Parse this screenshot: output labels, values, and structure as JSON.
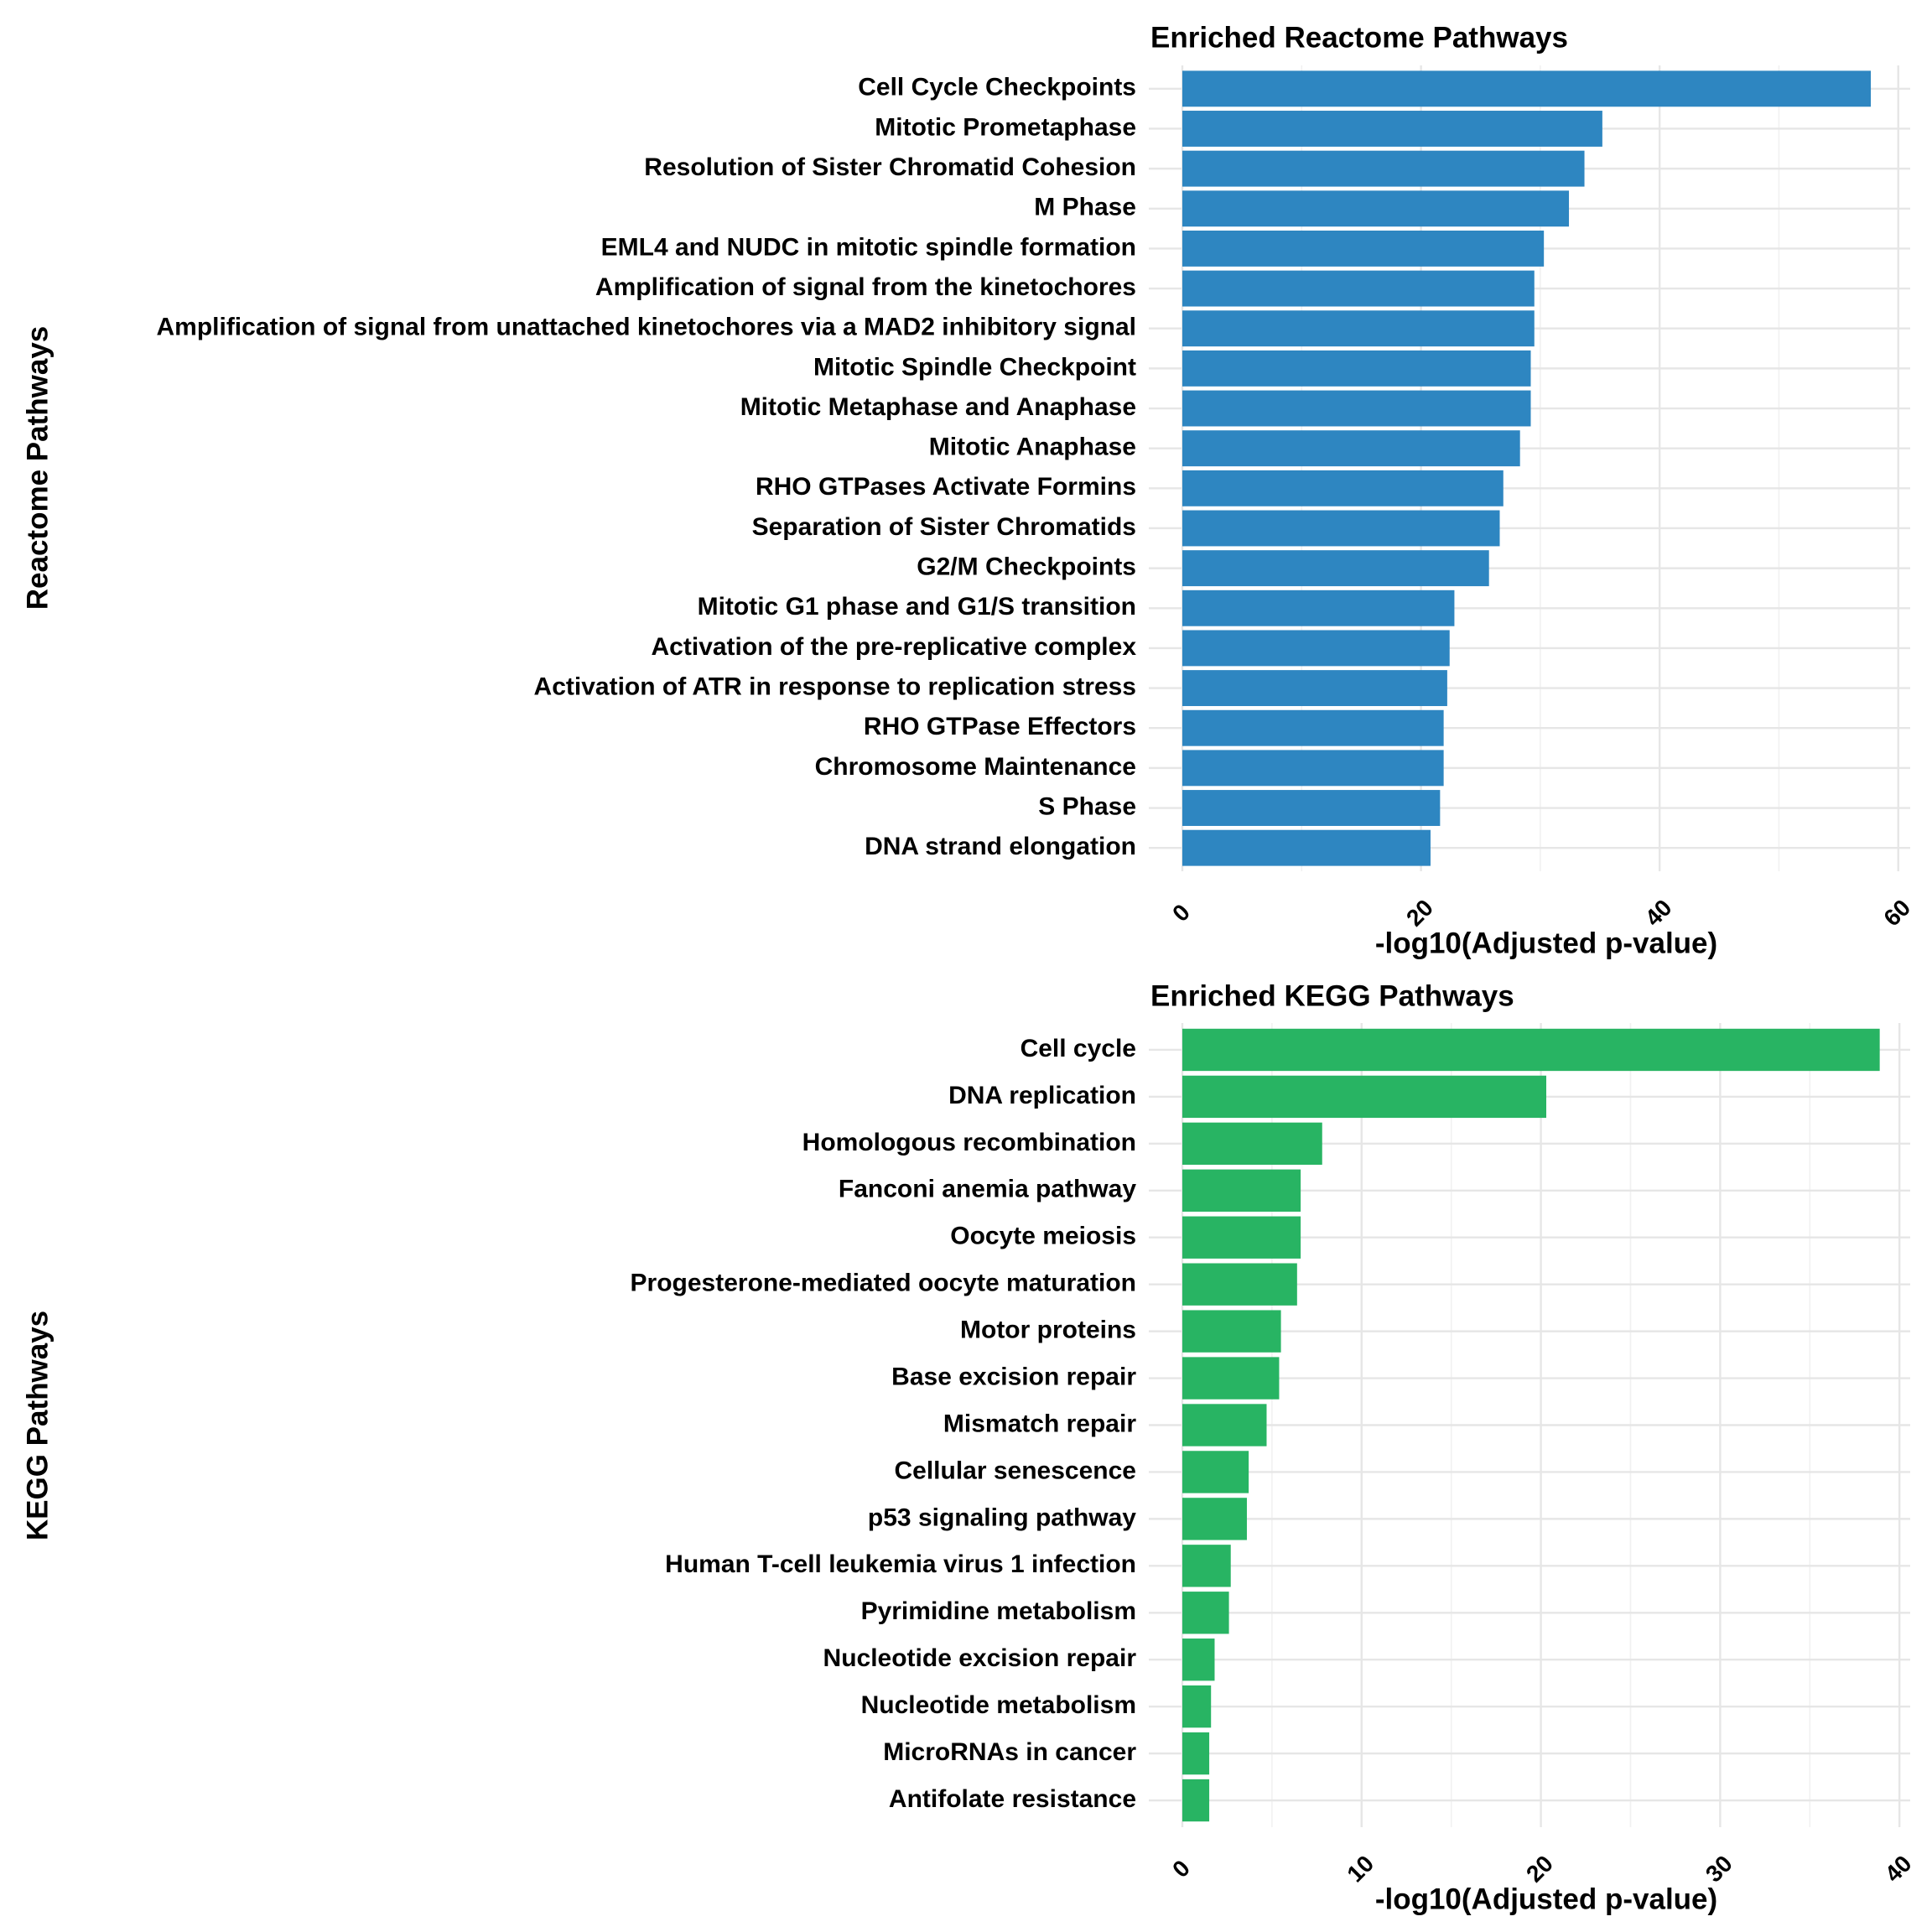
{
  "chart_data": [
    {
      "type": "bar",
      "orientation": "horizontal",
      "title": "Enriched Reactome Pathways",
      "xlabel": "-log10(Adjusted p-value)",
      "ylabel": "Reactome Pathways",
      "xlim": [
        0,
        61
      ],
      "xticks": [
        0,
        20,
        40,
        60
      ],
      "tick_label_rotation": "45 degrees",
      "grid": true,
      "legend": "none",
      "color": "#2E86C1",
      "categories": [
        "Cell Cycle Checkpoints",
        "Mitotic Prometaphase",
        "Resolution of Sister Chromatid Cohesion",
        "M Phase",
        "EML4 and NUDC in mitotic spindle formation",
        "Amplification of signal from the kinetochores",
        "Amplification  of signal from unattached  kinetochores via a MAD2  inhibitory signal",
        "Mitotic Spindle Checkpoint",
        "Mitotic Metaphase and Anaphase",
        "Mitotic Anaphase",
        "RHO GTPases Activate Formins",
        "Separation of Sister Chromatids",
        "G2/M Checkpoints",
        "Mitotic G1 phase and G1/S transition",
        "Activation of the pre-replicative complex",
        "Activation of ATR in response to replication stress",
        "RHO GTPase Effectors",
        "Chromosome Maintenance",
        "S Phase",
        "DNA strand elongation"
      ],
      "values": [
        57.7,
        35.2,
        33.7,
        32.4,
        30.3,
        29.5,
        29.5,
        29.2,
        29.2,
        28.3,
        26.9,
        26.6,
        25.7,
        22.8,
        22.4,
        22.2,
        21.9,
        21.9,
        21.6,
        20.8
      ]
    },
    {
      "type": "bar",
      "orientation": "horizontal",
      "title": "Enriched KEGG Pathways",
      "xlabel": "-log10(Adjusted p-value)",
      "ylabel": "KEGG Pathways",
      "xlim": [
        0,
        40.6
      ],
      "xticks": [
        0,
        10,
        20,
        30,
        40
      ],
      "tick_label_rotation": "45 degrees",
      "grid": true,
      "legend": "none",
      "color": "#28B463",
      "categories": [
        "Cell cycle",
        "DNA replication",
        "Homologous recombination",
        "Fanconi anemia pathway",
        "Oocyte meiosis",
        "Progesterone-mediated oocyte maturation",
        "Motor proteins",
        "Base excision repair",
        "Mismatch repair",
        "Cellular senescence",
        "p53 signaling pathway",
        "Human T-cell leukemia virus 1 infection",
        "Pyrimidine metabolism",
        "Nucleotide excision repair",
        "Nucleotide metabolism",
        "MicroRNAs in cancer",
        "Antifolate resistance"
      ],
      "values": [
        38.9,
        20.3,
        7.8,
        6.6,
        6.6,
        6.4,
        5.5,
        5.4,
        4.7,
        3.7,
        3.6,
        2.7,
        2.6,
        1.8,
        1.6,
        1.5,
        1.5
      ]
    }
  ]
}
